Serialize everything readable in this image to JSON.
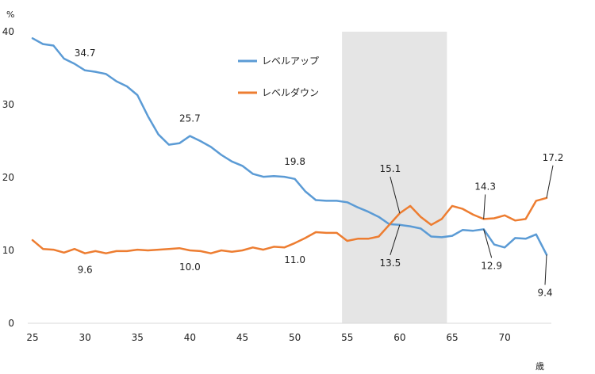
{
  "chart_data": {
    "type": "line",
    "xlabel": "歳",
    "ylabel": "%",
    "xlim": [
      25,
      74
    ],
    "ylim": [
      0,
      40
    ],
    "xticks": [
      25,
      30,
      35,
      40,
      45,
      50,
      55,
      60,
      65,
      70
    ],
    "yticks": [
      0,
      10,
      20,
      30,
      40
    ],
    "grid": false,
    "legend_position": "top-center",
    "shaded_region": {
      "x": [
        54.5,
        64.5
      ],
      "color": "#e5e5e5"
    },
    "x": [
      25,
      26,
      27,
      28,
      29,
      30,
      31,
      32,
      33,
      34,
      35,
      36,
      37,
      38,
      39,
      40,
      41,
      42,
      43,
      44,
      45,
      46,
      47,
      48,
      49,
      50,
      51,
      52,
      53,
      54,
      55,
      56,
      57,
      58,
      59,
      60,
      61,
      62,
      63,
      64,
      65,
      66,
      67,
      68,
      69,
      70,
      71,
      72,
      73,
      74
    ],
    "series": [
      {
        "name": "レベルアップ",
        "color": "#5b9bd5",
        "values": [
          39.1,
          38.3,
          38.1,
          36.3,
          35.6,
          34.7,
          34.5,
          34.2,
          33.2,
          32.5,
          31.3,
          28.4,
          25.9,
          24.5,
          24.7,
          25.7,
          25.0,
          24.2,
          23.1,
          22.2,
          21.6,
          20.5,
          20.1,
          20.2,
          20.1,
          19.8,
          18.1,
          16.9,
          16.8,
          16.8,
          16.6,
          15.9,
          15.3,
          14.6,
          13.6,
          13.5,
          13.3,
          13.0,
          11.9,
          11.8,
          12.0,
          12.8,
          12.7,
          12.9,
          10.8,
          10.4,
          11.7,
          11.6,
          12.2,
          9.4
        ]
      },
      {
        "name": "レベルダウン",
        "color": "#ed7d31",
        "values": [
          11.4,
          10.2,
          10.1,
          9.7,
          10.2,
          9.6,
          9.9,
          9.6,
          9.9,
          9.9,
          10.1,
          10.0,
          10.1,
          10.2,
          10.3,
          10.0,
          9.9,
          9.6,
          10.0,
          9.8,
          10.0,
          10.4,
          10.1,
          10.5,
          10.4,
          11.0,
          11.7,
          12.5,
          12.4,
          12.4,
          11.3,
          11.6,
          11.6,
          11.9,
          13.5,
          15.1,
          16.1,
          14.6,
          13.5,
          14.3,
          16.1,
          15.7,
          14.9,
          14.3,
          14.4,
          14.8,
          14.1,
          14.3,
          16.8,
          17.2
        ]
      }
    ],
    "annotations": [
      {
        "text": "34.7",
        "series": 0,
        "x": 30
      },
      {
        "text": "25.7",
        "series": 0,
        "x": 40
      },
      {
        "text": "19.8",
        "series": 0,
        "x": 50
      },
      {
        "text": "9.6",
        "series": 1,
        "x": 30
      },
      {
        "text": "10.0",
        "series": 1,
        "x": 40
      },
      {
        "text": "11.0",
        "series": 1,
        "x": 50
      },
      {
        "text": "15.1",
        "series": 1,
        "x": 60
      },
      {
        "text": "13.5",
        "series": 0,
        "x": 60
      },
      {
        "text": "14.3",
        "series": 1,
        "x": 68
      },
      {
        "text": "12.9",
        "series": 0,
        "x": 68
      },
      {
        "text": "17.2",
        "series": 1,
        "x": 74
      },
      {
        "text": "9.4",
        "series": 0,
        "x": 74
      }
    ]
  }
}
